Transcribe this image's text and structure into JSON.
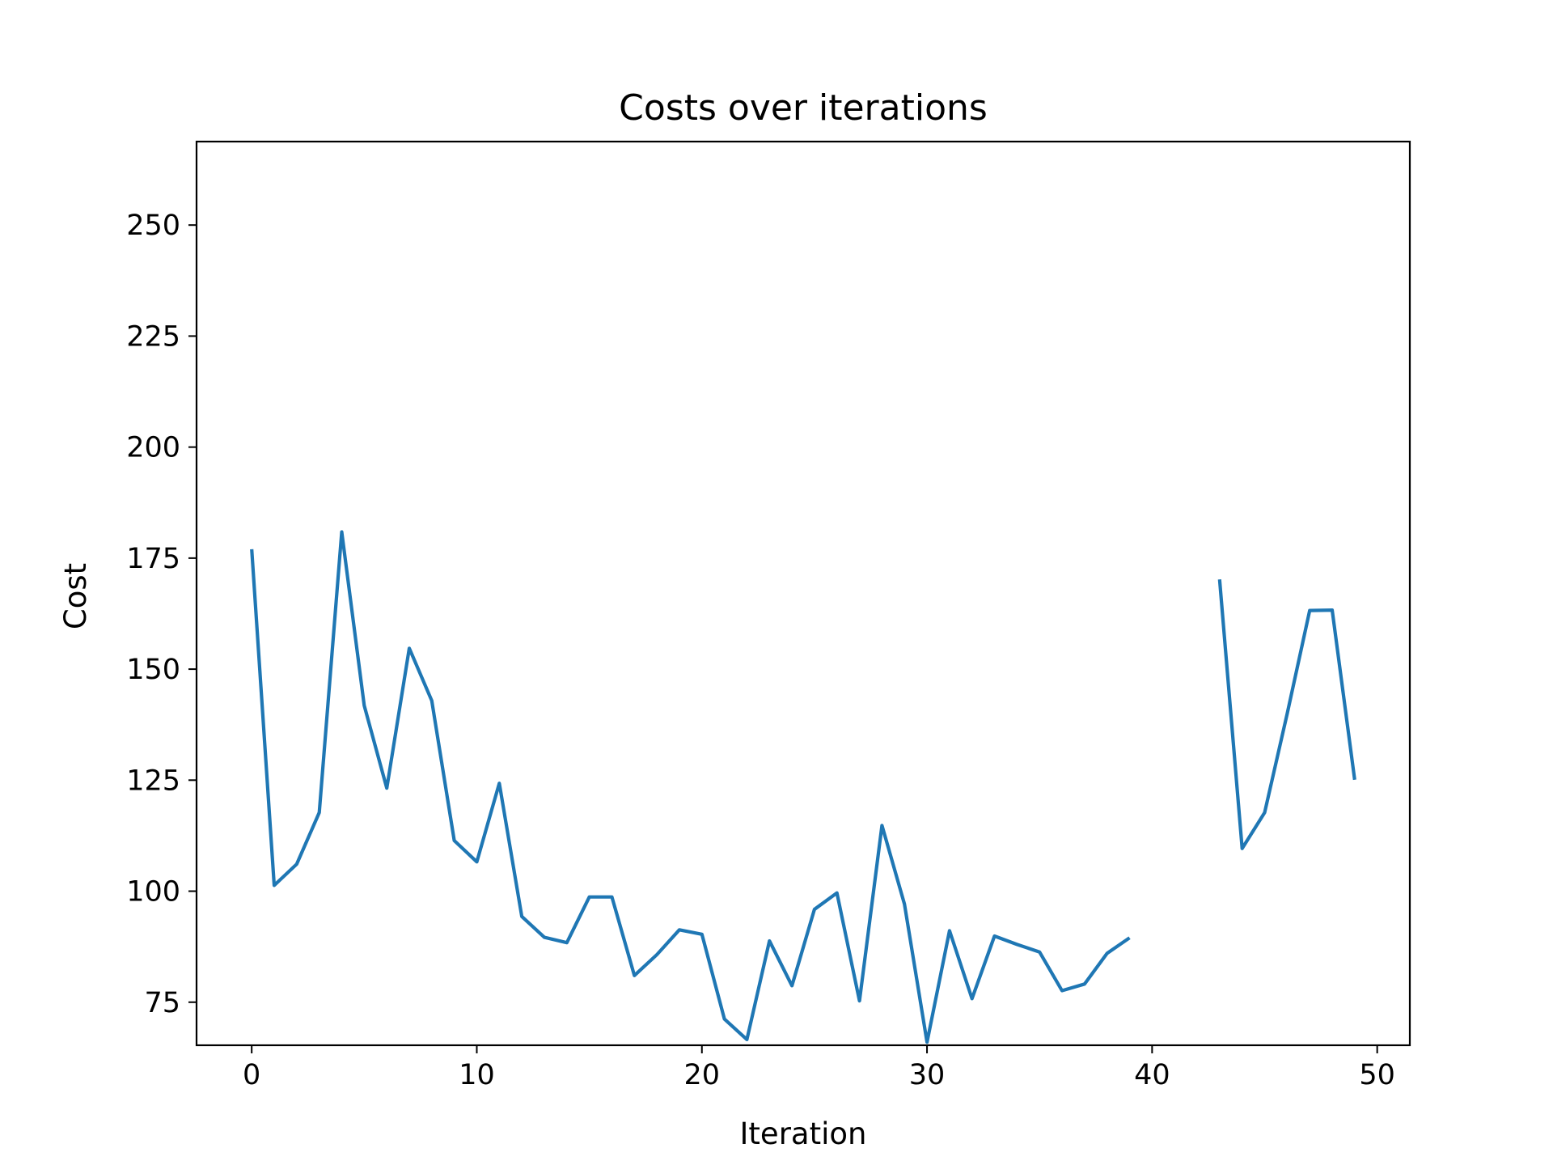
{
  "chart_data": {
    "type": "line",
    "title": "Costs over iterations",
    "xlabel": "Iteration",
    "ylabel": "Cost",
    "xlim": [
      -2.45,
      51.45
    ],
    "ylim": [
      65.3,
      268.8
    ],
    "x_ticks": [
      0,
      10,
      20,
      30,
      40,
      50
    ],
    "y_ticks": [
      75,
      100,
      125,
      150,
      175,
      200,
      225,
      250
    ],
    "grid": false,
    "line_color": "#1f77b4",
    "series": [
      {
        "x": [
          0,
          1,
          2,
          3,
          4,
          5,
          6,
          7,
          8,
          9,
          10,
          11,
          12,
          13,
          14,
          15,
          16,
          17,
          18,
          19,
          20,
          21,
          22,
          23,
          24,
          25,
          26,
          27,
          28,
          29,
          30,
          31,
          32,
          33,
          34,
          35,
          36,
          37,
          38,
          39,
          40,
          41,
          42,
          43,
          44,
          45,
          46,
          47,
          48,
          49
        ],
        "values": [
          177.0,
          101.3,
          106.1,
          117.7,
          180.9,
          141.8,
          123.2,
          154.7,
          142.9,
          111.4,
          106.6,
          124.3,
          94.3,
          89.6,
          88.4,
          98.7,
          98.7,
          81.0,
          85.7,
          91.3,
          90.3,
          71.2,
          66.6,
          88.8,
          78.7,
          95.9,
          99.6,
          75.3,
          114.8,
          97.1,
          66.0,
          91.1,
          75.8,
          89.9,
          88.0,
          86.3,
          77.6,
          79.1,
          86.0,
          89.5,
          null,
          null,
          null,
          170.2,
          109.6,
          117.7,
          139.9,
          163.2,
          163.3,
          125.1
        ]
      }
    ]
  }
}
